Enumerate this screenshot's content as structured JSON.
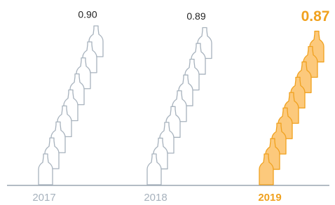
{
  "chart_data": {
    "type": "pictogram",
    "categories": [
      "2017",
      "2018",
      "2019"
    ],
    "values": [
      0.9,
      0.89,
      0.87
    ],
    "value_labels": [
      "0.90",
      "0.89",
      "0.87"
    ],
    "colors": [
      "#a7b2bd",
      "#a7b2bd",
      "#f0a11e"
    ],
    "fills": [
      "#ffffff",
      "#ffffff",
      "#fcc97c"
    ],
    "highlight": 2
  }
}
